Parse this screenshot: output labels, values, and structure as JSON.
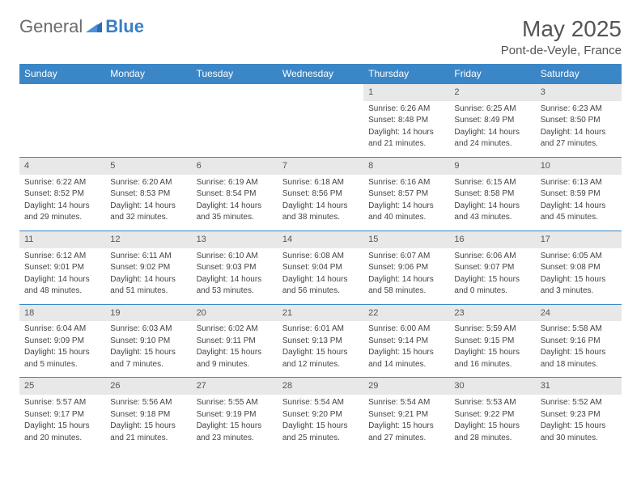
{
  "logo": {
    "word1": "General",
    "word2": "Blue"
  },
  "title": "May 2025",
  "location": "Pont-de-Veyle, France",
  "accent_color": "#3b86c7",
  "header_bg": "#e8e8e8",
  "text_color": "#444444",
  "days_of_week": [
    "Sunday",
    "Monday",
    "Tuesday",
    "Wednesday",
    "Thursday",
    "Friday",
    "Saturday"
  ],
  "weeks": [
    {
      "nums": [
        "",
        "",
        "",
        "",
        "1",
        "2",
        "3"
      ],
      "cells": [
        null,
        null,
        null,
        null,
        {
          "sunrise": "Sunrise: 6:26 AM",
          "sunset": "Sunset: 8:48 PM",
          "day1": "Daylight: 14 hours",
          "day2": "and 21 minutes."
        },
        {
          "sunrise": "Sunrise: 6:25 AM",
          "sunset": "Sunset: 8:49 PM",
          "day1": "Daylight: 14 hours",
          "day2": "and 24 minutes."
        },
        {
          "sunrise": "Sunrise: 6:23 AM",
          "sunset": "Sunset: 8:50 PM",
          "day1": "Daylight: 14 hours",
          "day2": "and 27 minutes."
        }
      ]
    },
    {
      "nums": [
        "4",
        "5",
        "6",
        "7",
        "8",
        "9",
        "10"
      ],
      "cells": [
        {
          "sunrise": "Sunrise: 6:22 AM",
          "sunset": "Sunset: 8:52 PM",
          "day1": "Daylight: 14 hours",
          "day2": "and 29 minutes."
        },
        {
          "sunrise": "Sunrise: 6:20 AM",
          "sunset": "Sunset: 8:53 PM",
          "day1": "Daylight: 14 hours",
          "day2": "and 32 minutes."
        },
        {
          "sunrise": "Sunrise: 6:19 AM",
          "sunset": "Sunset: 8:54 PM",
          "day1": "Daylight: 14 hours",
          "day2": "and 35 minutes."
        },
        {
          "sunrise": "Sunrise: 6:18 AM",
          "sunset": "Sunset: 8:56 PM",
          "day1": "Daylight: 14 hours",
          "day2": "and 38 minutes."
        },
        {
          "sunrise": "Sunrise: 6:16 AM",
          "sunset": "Sunset: 8:57 PM",
          "day1": "Daylight: 14 hours",
          "day2": "and 40 minutes."
        },
        {
          "sunrise": "Sunrise: 6:15 AM",
          "sunset": "Sunset: 8:58 PM",
          "day1": "Daylight: 14 hours",
          "day2": "and 43 minutes."
        },
        {
          "sunrise": "Sunrise: 6:13 AM",
          "sunset": "Sunset: 8:59 PM",
          "day1": "Daylight: 14 hours",
          "day2": "and 45 minutes."
        }
      ]
    },
    {
      "nums": [
        "11",
        "12",
        "13",
        "14",
        "15",
        "16",
        "17"
      ],
      "cells": [
        {
          "sunrise": "Sunrise: 6:12 AM",
          "sunset": "Sunset: 9:01 PM",
          "day1": "Daylight: 14 hours",
          "day2": "and 48 minutes."
        },
        {
          "sunrise": "Sunrise: 6:11 AM",
          "sunset": "Sunset: 9:02 PM",
          "day1": "Daylight: 14 hours",
          "day2": "and 51 minutes."
        },
        {
          "sunrise": "Sunrise: 6:10 AM",
          "sunset": "Sunset: 9:03 PM",
          "day1": "Daylight: 14 hours",
          "day2": "and 53 minutes."
        },
        {
          "sunrise": "Sunrise: 6:08 AM",
          "sunset": "Sunset: 9:04 PM",
          "day1": "Daylight: 14 hours",
          "day2": "and 56 minutes."
        },
        {
          "sunrise": "Sunrise: 6:07 AM",
          "sunset": "Sunset: 9:06 PM",
          "day1": "Daylight: 14 hours",
          "day2": "and 58 minutes."
        },
        {
          "sunrise": "Sunrise: 6:06 AM",
          "sunset": "Sunset: 9:07 PM",
          "day1": "Daylight: 15 hours",
          "day2": "and 0 minutes."
        },
        {
          "sunrise": "Sunrise: 6:05 AM",
          "sunset": "Sunset: 9:08 PM",
          "day1": "Daylight: 15 hours",
          "day2": "and 3 minutes."
        }
      ]
    },
    {
      "nums": [
        "18",
        "19",
        "20",
        "21",
        "22",
        "23",
        "24"
      ],
      "cells": [
        {
          "sunrise": "Sunrise: 6:04 AM",
          "sunset": "Sunset: 9:09 PM",
          "day1": "Daylight: 15 hours",
          "day2": "and 5 minutes."
        },
        {
          "sunrise": "Sunrise: 6:03 AM",
          "sunset": "Sunset: 9:10 PM",
          "day1": "Daylight: 15 hours",
          "day2": "and 7 minutes."
        },
        {
          "sunrise": "Sunrise: 6:02 AM",
          "sunset": "Sunset: 9:11 PM",
          "day1": "Daylight: 15 hours",
          "day2": "and 9 minutes."
        },
        {
          "sunrise": "Sunrise: 6:01 AM",
          "sunset": "Sunset: 9:13 PM",
          "day1": "Daylight: 15 hours",
          "day2": "and 12 minutes."
        },
        {
          "sunrise": "Sunrise: 6:00 AM",
          "sunset": "Sunset: 9:14 PM",
          "day1": "Daylight: 15 hours",
          "day2": "and 14 minutes."
        },
        {
          "sunrise": "Sunrise: 5:59 AM",
          "sunset": "Sunset: 9:15 PM",
          "day1": "Daylight: 15 hours",
          "day2": "and 16 minutes."
        },
        {
          "sunrise": "Sunrise: 5:58 AM",
          "sunset": "Sunset: 9:16 PM",
          "day1": "Daylight: 15 hours",
          "day2": "and 18 minutes."
        }
      ]
    },
    {
      "nums": [
        "25",
        "26",
        "27",
        "28",
        "29",
        "30",
        "31"
      ],
      "cells": [
        {
          "sunrise": "Sunrise: 5:57 AM",
          "sunset": "Sunset: 9:17 PM",
          "day1": "Daylight: 15 hours",
          "day2": "and 20 minutes."
        },
        {
          "sunrise": "Sunrise: 5:56 AM",
          "sunset": "Sunset: 9:18 PM",
          "day1": "Daylight: 15 hours",
          "day2": "and 21 minutes."
        },
        {
          "sunrise": "Sunrise: 5:55 AM",
          "sunset": "Sunset: 9:19 PM",
          "day1": "Daylight: 15 hours",
          "day2": "and 23 minutes."
        },
        {
          "sunrise": "Sunrise: 5:54 AM",
          "sunset": "Sunset: 9:20 PM",
          "day1": "Daylight: 15 hours",
          "day2": "and 25 minutes."
        },
        {
          "sunrise": "Sunrise: 5:54 AM",
          "sunset": "Sunset: 9:21 PM",
          "day1": "Daylight: 15 hours",
          "day2": "and 27 minutes."
        },
        {
          "sunrise": "Sunrise: 5:53 AM",
          "sunset": "Sunset: 9:22 PM",
          "day1": "Daylight: 15 hours",
          "day2": "and 28 minutes."
        },
        {
          "sunrise": "Sunrise: 5:52 AM",
          "sunset": "Sunset: 9:23 PM",
          "day1": "Daylight: 15 hours",
          "day2": "and 30 minutes."
        }
      ]
    }
  ]
}
